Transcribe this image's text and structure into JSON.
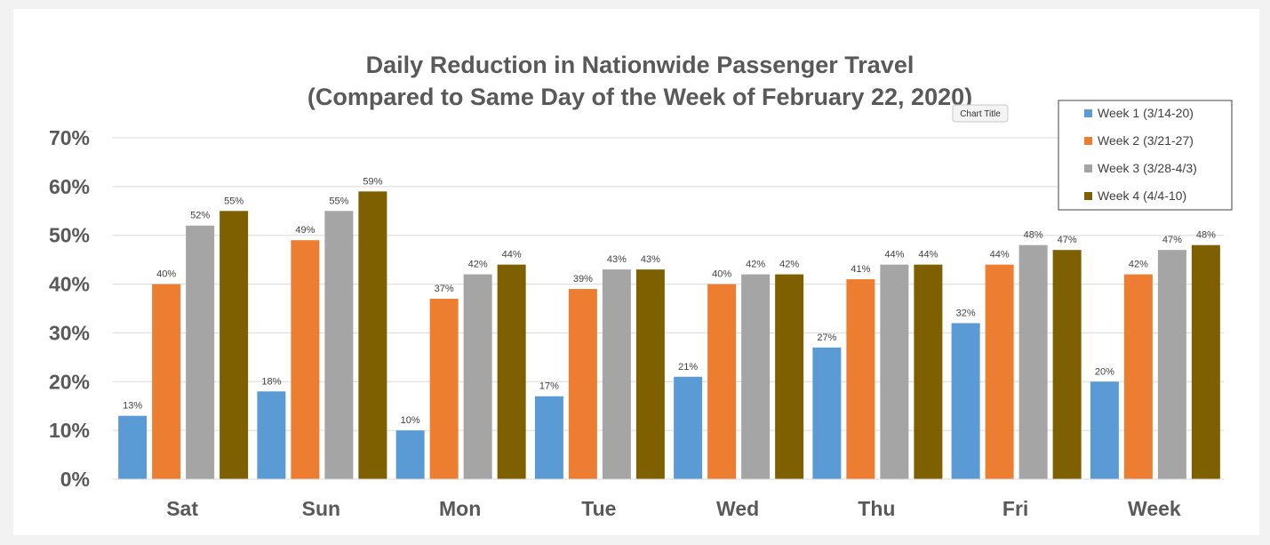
{
  "chart_data": {
    "type": "bar",
    "title": "Daily Reduction in Nationwide Passenger Travel",
    "subtitle": "(Compared to Same Day of the Week of February 22, 2020)",
    "xlabel": "",
    "ylabel": "",
    "ylim": [
      0,
      0.7
    ],
    "yticks": [
      "0%",
      "10%",
      "20%",
      "30%",
      "40%",
      "50%",
      "60%",
      "70%"
    ],
    "yticks_values": [
      0,
      0.1,
      0.2,
      0.3,
      0.4,
      0.5,
      0.6,
      0.7
    ],
    "grid": true,
    "legend_position": "top-right",
    "categories": [
      "Sat",
      "Sun",
      "Mon",
      "Tue",
      "Wed",
      "Thu",
      "Fri",
      "Week"
    ],
    "series": [
      {
        "name": "Week 1 (3/14-20)",
        "color": "#5b9bd5",
        "values": [
          0.13,
          0.18,
          0.1,
          0.17,
          0.21,
          0.27,
          0.32,
          0.2
        ],
        "labels": [
          "13%",
          "18%",
          "10%",
          "17%",
          "21%",
          "27%",
          "32%",
          "20%"
        ]
      },
      {
        "name": "Week 2 (3/21-27)",
        "color": "#ed7d31",
        "values": [
          0.4,
          0.49,
          0.37,
          0.39,
          0.4,
          0.41,
          0.44,
          0.42
        ],
        "labels": [
          "40%",
          "49%",
          "37%",
          "39%",
          "40%",
          "41%",
          "44%",
          "42%"
        ]
      },
      {
        "name": "Week 3 (3/28-4/3)",
        "color": "#a5a5a5",
        "values": [
          0.52,
          0.55,
          0.42,
          0.43,
          0.42,
          0.44,
          0.48,
          0.47
        ],
        "labels": [
          "52%",
          "55%",
          "42%",
          "43%",
          "42%",
          "44%",
          "48%",
          "47%"
        ]
      },
      {
        "name": "Week 4 (4/4-10)",
        "color": "#7f6000",
        "values": [
          0.55,
          0.59,
          0.44,
          0.43,
          0.42,
          0.44,
          0.47,
          0.48
        ],
        "labels": [
          "55%",
          "59%",
          "44%",
          "43%",
          "42%",
          "44%",
          "47%",
          "48%"
        ]
      }
    ],
    "tooltip": "Chart Title"
  }
}
